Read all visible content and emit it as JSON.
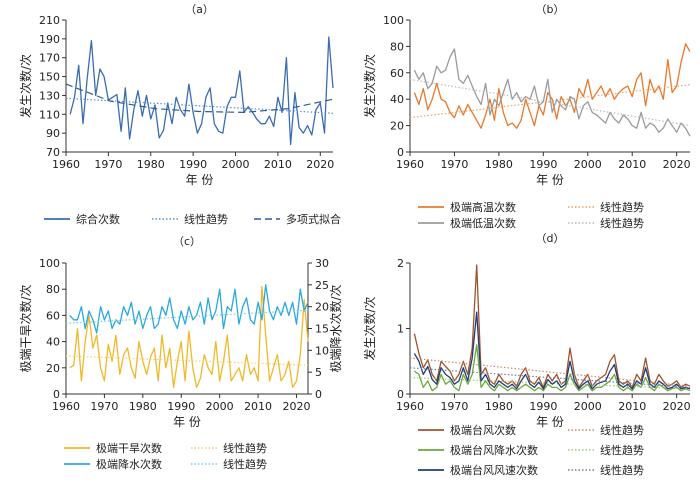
{
  "chart_data": [
    {
      "id": "a",
      "type": "line",
      "panel_label": "（a）",
      "xlabel": "年 份",
      "ylabel": "发生次数/次",
      "xlim": [
        1960,
        2023
      ],
      "ylim": [
        70,
        210
      ],
      "xticks": [
        "1960",
        "1970",
        "1980",
        "1990",
        "2000",
        "2010",
        "2020"
      ],
      "yticks": [
        "70",
        "90",
        "110",
        "130",
        "150",
        "170",
        "190",
        "210"
      ],
      "series": [
        {
          "name": "综合次数",
          "color": "#3a6cb5",
          "style": "solid",
          "x_start": 1961,
          "values": [
            110,
            128,
            162,
            100,
            148,
            188,
            130,
            158,
            150,
            125,
            128,
            131,
            92,
            138,
            84,
            115,
            135,
            108,
            130,
            105,
            120,
            85,
            93,
            122,
            100,
            128,
            115,
            108,
            142,
            112,
            90,
            100,
            128,
            138,
            100,
            92,
            90,
            118,
            128,
            128,
            156,
            112,
            118,
            112,
            105,
            100,
            100,
            108,
            97,
            128,
            112,
            170,
            78,
            133,
            96,
            90,
            98,
            88,
            115,
            122,
            90,
            192,
            138
          ]
        },
        {
          "name": "线性趋势",
          "color": "#5b8fd0",
          "style": "dotted",
          "trend": [
            127,
            111
          ]
        },
        {
          "name": "多项式拟合",
          "color": "#2f5c98",
          "style": "dashed",
          "poly": [
            142,
            124,
            116,
            113,
            112,
            116,
            126
          ]
        }
      ],
      "legend": [
        "综合次数",
        "线性趋势",
        "多项式拟合"
      ]
    },
    {
      "id": "b",
      "type": "line",
      "panel_label": "（b）",
      "xlabel": "年 份",
      "ylabel": "发生次数/次",
      "xlim": [
        1960,
        2023
      ],
      "ylim": [
        0,
        100
      ],
      "xticks": [
        "1960",
        "1970",
        "1980",
        "1990",
        "2000",
        "2010",
        "2020"
      ],
      "yticks": [
        "0",
        "20",
        "40",
        "60",
        "80",
        "100"
      ],
      "series": [
        {
          "name": "极端高温次数",
          "color": "#e8792c",
          "style": "solid",
          "x_start": 1961,
          "values": [
            45,
            36,
            48,
            32,
            40,
            52,
            40,
            38,
            30,
            26,
            35,
            28,
            36,
            30,
            24,
            18,
            28,
            40,
            24,
            48,
            30,
            20,
            22,
            18,
            24,
            40,
            30,
            20,
            35,
            28,
            45,
            40,
            25,
            42,
            35,
            40,
            30,
            48,
            42,
            55,
            40,
            45,
            50,
            42,
            48,
            40,
            45,
            48,
            50,
            42,
            55,
            60,
            35,
            55,
            45,
            50,
            40,
            70,
            45,
            50,
            68,
            82,
            76
          ]
        },
        {
          "name": "线性趋势",
          "color": "#f0a060",
          "style": "dotted",
          "trend": [
            26,
            51
          ]
        },
        {
          "name": "极端低温次数",
          "color": "#9b9b9b",
          "style": "solid",
          "x_start": 1961,
          "values": [
            62,
            55,
            60,
            48,
            52,
            65,
            60,
            62,
            72,
            78,
            55,
            52,
            58,
            50,
            42,
            36,
            52,
            28,
            40,
            35,
            45,
            55,
            40,
            45,
            38,
            42,
            40,
            50,
            35,
            38,
            55,
            30,
            40,
            35,
            32,
            42,
            40,
            25,
            35,
            38,
            30,
            28,
            25,
            22,
            30,
            25,
            22,
            28,
            25,
            20,
            18,
            30,
            18,
            22,
            20,
            15,
            18,
            25,
            20,
            15,
            22,
            18,
            12
          ]
        },
        {
          "name": "线性趋势",
          "color": "#bbbbbb",
          "style": "dotted",
          "trend": [
            55,
            20
          ]
        }
      ],
      "legend": [
        "极端高温次数",
        "线性趋势",
        "极端低温次数",
        "线性趋势"
      ]
    },
    {
      "id": "c",
      "type": "line",
      "panel_label": "（c）",
      "xlabel": "年 份",
      "ylabel": "极端干旱次数/次",
      "ylabel_right": "极端降水次数/次",
      "xlim": [
        1960,
        2023
      ],
      "ylim": [
        0,
        100
      ],
      "ylim_right": [
        0,
        30
      ],
      "xticks": [
        "1960",
        "1970",
        "1980",
        "1990",
        "2000",
        "2010",
        "2020"
      ],
      "yticks": [
        "0",
        "20",
        "40",
        "60",
        "80",
        "100"
      ],
      "yticks_right": [
        "0",
        "5",
        "10",
        "15",
        "20",
        "25",
        "30"
      ],
      "series": [
        {
          "name": "极端干旱次数",
          "color": "#f0b92a",
          "style": "solid",
          "axis": "left",
          "x_start": 1961,
          "values": [
            20,
            22,
            50,
            10,
            40,
            60,
            35,
            45,
            20,
            10,
            38,
            25,
            45,
            15,
            30,
            35,
            20,
            12,
            40,
            25,
            15,
            28,
            35,
            10,
            45,
            20,
            35,
            5,
            25,
            40,
            10,
            48,
            20,
            5,
            12,
            30,
            20,
            15,
            40,
            10,
            25,
            45,
            10,
            15,
            20,
            10,
            30,
            15,
            20,
            10,
            82,
            45,
            10,
            20,
            30,
            10,
            15,
            25,
            5,
            10,
            30,
            72,
            40
          ]
        },
        {
          "name": "线性趋势",
          "color": "#f5cf70",
          "style": "dotted",
          "axis": "left",
          "trend": [
            29,
            22
          ]
        },
        {
          "name": "极端降水次数",
          "color": "#2aa9de",
          "style": "solid",
          "axis": "right",
          "x_start": 1961,
          "values": [
            18,
            17,
            17,
            20,
            15,
            19,
            17,
            14,
            20,
            17,
            19,
            15,
            17,
            16,
            20,
            18,
            21,
            16,
            19,
            15,
            18,
            20,
            15,
            16,
            20,
            18,
            22,
            17,
            15,
            19,
            16,
            20,
            17,
            18,
            21,
            16,
            22,
            17,
            19,
            24,
            15,
            20,
            19,
            24,
            16,
            20,
            22,
            17,
            16,
            21,
            17,
            25,
            19,
            17,
            20,
            18,
            21,
            18,
            21,
            16,
            24,
            19,
            21
          ]
        },
        {
          "name": "线性趋势",
          "color": "#7ccbe8",
          "style": "dotted",
          "axis": "right",
          "trend": [
            16.2,
            19.2
          ]
        }
      ],
      "legend": [
        "极端干旱次数",
        "线性趋势",
        "极端降水次数",
        "线性趋势"
      ]
    },
    {
      "id": "d",
      "type": "line",
      "panel_label": "（d）",
      "xlabel": "年 份",
      "ylabel": "发生次数/次",
      "xlim": [
        1960,
        2023
      ],
      "ylim": [
        0,
        2
      ],
      "xticks": [
        "1960",
        "1970",
        "1980",
        "1990",
        "2000",
        "2010",
        "2020"
      ],
      "yticks": [
        "0",
        "1",
        "2"
      ],
      "series": [
        {
          "name": "极端台风次数",
          "color": "#a0522d",
          "style": "solid",
          "x_start": 1961,
          "values": [
            0.92,
            0.62,
            0.4,
            0.52,
            0.3,
            0.2,
            0.5,
            0.42,
            0.35,
            0.2,
            0.3,
            0.5,
            0.3,
            0.7,
            1.97,
            0.3,
            0.4,
            0.2,
            0.15,
            0.3,
            0.2,
            0.15,
            0.2,
            0.12,
            0.3,
            0.4,
            0.2,
            0.15,
            0.25,
            0.1,
            0.3,
            0.2,
            0.3,
            0.15,
            0.2,
            0.7,
            0.3,
            0.1,
            0.2,
            0.3,
            0.12,
            0.2,
            0.25,
            0.3,
            0.5,
            0.6,
            0.2,
            0.15,
            0.2,
            0.1,
            0.3,
            0.2,
            0.55,
            0.2,
            0.15,
            0.3,
            0.2,
            0.12,
            0.15,
            0.2,
            0.1,
            0.15,
            0.12
          ]
        },
        {
          "name": "线性趋势",
          "color": "#c98a6a",
          "style": "dotted",
          "trend": [
            0.55,
            0.12
          ]
        },
        {
          "name": "极端台风降水次数",
          "color": "#6aaa3a",
          "style": "solid",
          "x_start": 1961,
          "values": [
            0.35,
            0.3,
            0.1,
            0.2,
            0.05,
            0.1,
            0.3,
            0.15,
            0.2,
            0.1,
            0.05,
            0.3,
            0.15,
            0.3,
            0.75,
            0.1,
            0.2,
            0.1,
            0.05,
            0.15,
            0.1,
            0.05,
            0.1,
            0.05,
            0.1,
            0.15,
            0.1,
            0.05,
            0.1,
            0.05,
            0.15,
            0.1,
            0.1,
            0.05,
            0.1,
            0.3,
            0.15,
            0.05,
            0.1,
            0.15,
            0.05,
            0.1,
            0.1,
            0.15,
            0.2,
            0.3,
            0.1,
            0.05,
            0.1,
            0.05,
            0.15,
            0.1,
            0.25,
            0.1,
            0.05,
            0.15,
            0.1,
            0.05,
            0.08,
            0.1,
            0.05,
            0.08,
            0.05
          ]
        },
        {
          "name": "线性趋势",
          "color": "#9ccc7a",
          "style": "dotted",
          "trend": [
            0.25,
            0.08
          ]
        },
        {
          "name": "极端台风风速次数",
          "color": "#1f3b7a",
          "style": "solid",
          "x_start": 1961,
          "values": [
            0.62,
            0.5,
            0.3,
            0.42,
            0.22,
            0.15,
            0.4,
            0.3,
            0.25,
            0.15,
            0.2,
            0.4,
            0.2,
            0.55,
            1.25,
            0.2,
            0.3,
            0.15,
            0.1,
            0.2,
            0.15,
            0.1,
            0.15,
            0.08,
            0.2,
            0.3,
            0.15,
            0.1,
            0.18,
            0.08,
            0.22,
            0.15,
            0.2,
            0.1,
            0.15,
            0.5,
            0.2,
            0.08,
            0.15,
            0.2,
            0.08,
            0.15,
            0.18,
            0.2,
            0.35,
            0.45,
            0.15,
            0.1,
            0.15,
            0.08,
            0.2,
            0.15,
            0.4,
            0.15,
            0.1,
            0.2,
            0.15,
            0.08,
            0.1,
            0.15,
            0.08,
            0.1,
            0.08
          ]
        },
        {
          "name": "线性趋势",
          "color": "#6b7fb0",
          "style": "dotted",
          "trend": [
            0.4,
            0.1
          ]
        }
      ],
      "legend": [
        "极端台风次数",
        "线性趋势",
        "极端台风降水次数",
        "线性趋势",
        "极端台风风速次数",
        "线性趋势"
      ]
    }
  ]
}
